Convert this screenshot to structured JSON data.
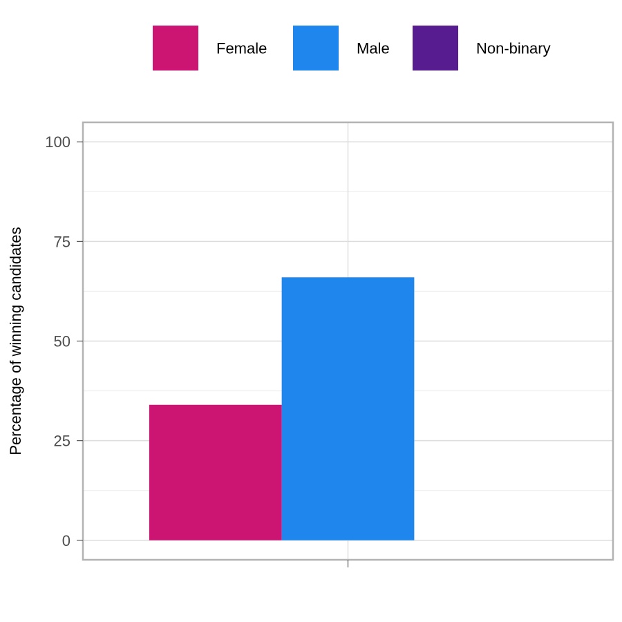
{
  "chart_data": {
    "type": "bar",
    "categories": [
      ""
    ],
    "series": [
      {
        "name": "Female",
        "values": [
          34
        ],
        "color": "#CC1472"
      },
      {
        "name": "Male",
        "values": [
          66
        ],
        "color": "#1E86EC"
      },
      {
        "name": "Non-binary",
        "values": [
          0
        ],
        "color": "#561C90"
      }
    ],
    "title": "",
    "xlabel": "",
    "ylabel": "Percentage of winning candidates",
    "ylim": [
      -4.9,
      104.9
    ],
    "yticks": [
      0,
      25,
      50,
      75,
      100
    ],
    "ytick_labels": [
      "0",
      "25",
      "50",
      "75",
      "100"
    ],
    "grid": true,
    "legend_position": "top"
  }
}
